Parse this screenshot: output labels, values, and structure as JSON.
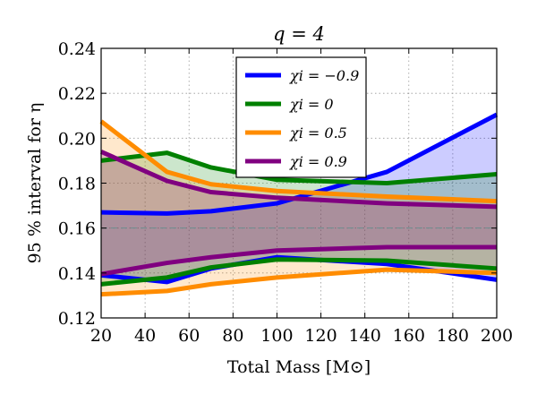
{
  "chart_data": {
    "type": "area",
    "title": "q = 4",
    "xlabel": "Total Mass [M⊙]",
    "ylabel": "95 % interval for η",
    "xlim": [
      20,
      200
    ],
    "ylim": [
      0.12,
      0.24
    ],
    "x_ticks": [
      20,
      40,
      60,
      80,
      100,
      120,
      140,
      160,
      180,
      200
    ],
    "y_ticks": [
      0.12,
      0.14,
      0.16,
      0.18,
      0.2,
      0.22,
      0.24
    ],
    "x_tick_labels": [
      "20",
      "40",
      "60",
      "80",
      "100",
      "120",
      "140",
      "160",
      "180",
      "200"
    ],
    "y_tick_labels": [
      "0.12",
      "0.14",
      "0.16",
      "0.18",
      "0.20",
      "0.22",
      "0.24"
    ],
    "grid": true,
    "reference_line": 0.16,
    "legend_position": "top-center",
    "x": [
      20,
      50,
      70,
      100,
      150,
      200
    ],
    "series": [
      {
        "name": "χi = −0.9",
        "color": "#0000ff",
        "upper": [
          0.167,
          0.1665,
          0.1675,
          0.171,
          0.185,
          0.2105
        ],
        "lower": [
          0.139,
          0.136,
          0.142,
          0.147,
          0.144,
          0.137
        ]
      },
      {
        "name": "χi = 0",
        "color": "#008000",
        "upper": [
          0.19,
          0.1935,
          0.187,
          0.1815,
          0.18,
          0.184
        ],
        "lower": [
          0.135,
          0.138,
          0.1425,
          0.146,
          0.1455,
          0.142
        ]
      },
      {
        "name": "χi = 0.5",
        "color": "#ff8c00",
        "upper": [
          0.2075,
          0.185,
          0.1795,
          0.1765,
          0.174,
          0.172
        ],
        "lower": [
          0.1305,
          0.132,
          0.135,
          0.138,
          0.1415,
          0.14
        ]
      },
      {
        "name": "χi = 0.9",
        "color": "#800080",
        "upper": [
          0.194,
          0.181,
          0.176,
          0.1735,
          0.171,
          0.1695
        ],
        "lower": [
          0.1395,
          0.1445,
          0.147,
          0.15,
          0.1515,
          0.1515
        ]
      }
    ]
  }
}
